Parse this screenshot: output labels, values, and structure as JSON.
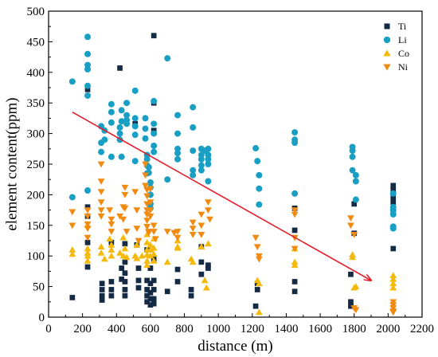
{
  "chart_data": {
    "type": "scatter",
    "xlabel": "distance (m)",
    "ylabel": "element content(ppm)",
    "xlim": [
      0,
      2200
    ],
    "ylim": [
      0,
      500
    ],
    "xticks": [
      0,
      200,
      400,
      600,
      800,
      1000,
      1200,
      1400,
      1600,
      1800,
      2000,
      2200
    ],
    "yticks": [
      0,
      50,
      100,
      150,
      200,
      250,
      300,
      350,
      400,
      450,
      500
    ],
    "legend_position": "top-right",
    "grid": false,
    "series": [
      {
        "name": "Ti",
        "marker": "square",
        "color": "#152a44",
        "points": [
          [
            140,
            32
          ],
          [
            230,
            372
          ],
          [
            230,
            180
          ],
          [
            230,
            165
          ],
          [
            230,
            122
          ],
          [
            230,
            82
          ],
          [
            315,
            55
          ],
          [
            315,
            45
          ],
          [
            315,
            35
          ],
          [
            315,
            28
          ],
          [
            370,
            122
          ],
          [
            370,
            58
          ],
          [
            370,
            45
          ],
          [
            370,
            35
          ],
          [
            420,
            407
          ],
          [
            430,
            80
          ],
          [
            430,
            62
          ],
          [
            450,
            120
          ],
          [
            450,
            90
          ],
          [
            450,
            72
          ],
          [
            450,
            58
          ],
          [
            450,
            45
          ],
          [
            450,
            35
          ],
          [
            510,
            316
          ],
          [
            520,
            118
          ],
          [
            530,
            80
          ],
          [
            530,
            60
          ],
          [
            530,
            48
          ],
          [
            580,
            110
          ],
          [
            580,
            60
          ],
          [
            580,
            45
          ],
          [
            580,
            35
          ],
          [
            580,
            25
          ],
          [
            600,
            80
          ],
          [
            600,
            55
          ],
          [
            600,
            40
          ],
          [
            600,
            30
          ],
          [
            600,
            20
          ],
          [
            620,
            460
          ],
          [
            620,
            350
          ],
          [
            620,
            305
          ],
          [
            620,
            95
          ],
          [
            620,
            60
          ],
          [
            620,
            45
          ],
          [
            620,
            30
          ],
          [
            620,
            22
          ],
          [
            700,
            42
          ],
          [
            760,
            58
          ],
          [
            760,
            78
          ],
          [
            840,
            45
          ],
          [
            840,
            35
          ],
          [
            900,
            115
          ],
          [
            900,
            90
          ],
          [
            900,
            70
          ],
          [
            940,
            85
          ],
          [
            940,
            80
          ],
          [
            1220,
            18
          ],
          [
            1230,
            55
          ],
          [
            1230,
            45
          ],
          [
            1450,
            178
          ],
          [
            1450,
            142
          ],
          [
            1450,
            58
          ],
          [
            1450,
            42
          ],
          [
            1780,
            70
          ],
          [
            1780,
            25
          ],
          [
            1780,
            18
          ],
          [
            1800,
            185
          ],
          [
            1800,
            137
          ],
          [
            2030,
            215
          ],
          [
            2030,
            208
          ],
          [
            2030,
            195
          ],
          [
            2030,
            188
          ],
          [
            2030,
            170
          ],
          [
            2030,
            112
          ]
        ]
      },
      {
        "name": "Li",
        "marker": "circle",
        "color": "#1a9fc4",
        "points": [
          [
            140,
            196
          ],
          [
            140,
            385
          ],
          [
            230,
            458
          ],
          [
            230,
            430
          ],
          [
            230,
            412
          ],
          [
            230,
            405
          ],
          [
            230,
            378
          ],
          [
            230,
            362
          ],
          [
            230,
            207
          ],
          [
            310,
            312
          ],
          [
            310,
            285
          ],
          [
            310,
            270
          ],
          [
            330,
            305
          ],
          [
            330,
            290
          ],
          [
            370,
            348
          ],
          [
            370,
            335
          ],
          [
            370,
            318
          ],
          [
            370,
            262
          ],
          [
            420,
            310
          ],
          [
            420,
            300
          ],
          [
            420,
            290
          ],
          [
            430,
            338
          ],
          [
            430,
            320
          ],
          [
            430,
            262
          ],
          [
            460,
            350
          ],
          [
            460,
            330
          ],
          [
            460,
            322
          ],
          [
            460,
            316
          ],
          [
            510,
            370
          ],
          [
            510,
            325
          ],
          [
            510,
            312
          ],
          [
            510,
            298
          ],
          [
            510,
            255
          ],
          [
            570,
            325
          ],
          [
            570,
            308
          ],
          [
            570,
            292
          ],
          [
            580,
            265
          ],
          [
            580,
            258
          ],
          [
            580,
            248
          ],
          [
            580,
            235
          ],
          [
            590,
            245
          ],
          [
            590,
            236
          ],
          [
            600,
            220
          ],
          [
            600,
            212
          ],
          [
            600,
            200
          ],
          [
            600,
            185
          ],
          [
            600,
            178
          ],
          [
            620,
            353
          ],
          [
            620,
            316
          ],
          [
            620,
            300
          ],
          [
            620,
            280
          ],
          [
            620,
            270
          ],
          [
            700,
            423
          ],
          [
            700,
            225
          ],
          [
            760,
            330
          ],
          [
            760,
            300
          ],
          [
            760,
            275
          ],
          [
            760,
            268
          ],
          [
            760,
            258
          ],
          [
            850,
            343
          ],
          [
            850,
            310
          ],
          [
            850,
            272
          ],
          [
            850,
            240
          ],
          [
            850,
            232
          ],
          [
            900,
            275
          ],
          [
            900,
            265
          ],
          [
            900,
            258
          ],
          [
            900,
            248
          ],
          [
            900,
            240
          ],
          [
            920,
            272
          ],
          [
            940,
            275
          ],
          [
            940,
            265
          ],
          [
            940,
            258
          ],
          [
            940,
            250
          ],
          [
            940,
            222
          ],
          [
            1220,
            276
          ],
          [
            1230,
            255
          ],
          [
            1240,
            232
          ],
          [
            1240,
            210
          ],
          [
            1240,
            184
          ],
          [
            1450,
            302
          ],
          [
            1450,
            290
          ],
          [
            1450,
            285
          ],
          [
            1450,
            202
          ],
          [
            1790,
            278
          ],
          [
            1790,
            272
          ],
          [
            1790,
            262
          ],
          [
            1790,
            240
          ],
          [
            1810,
            232
          ],
          [
            1810,
            222
          ],
          [
            1810,
            192
          ],
          [
            2030,
            202
          ],
          [
            2030,
            180
          ],
          [
            2030,
            175
          ],
          [
            2030,
            168
          ],
          [
            2030,
            148
          ],
          [
            2030,
            145
          ]
        ]
      },
      {
        "name": "Co",
        "marker": "triangle-up",
        "color": "#f5b90a",
        "points": [
          [
            140,
            110
          ],
          [
            140,
            103
          ],
          [
            230,
            150
          ],
          [
            230,
            112
          ],
          [
            230,
            105
          ],
          [
            230,
            100
          ],
          [
            230,
            92
          ],
          [
            310,
            115
          ],
          [
            310,
            105
          ],
          [
            330,
            95
          ],
          [
            360,
            128
          ],
          [
            370,
            118
          ],
          [
            370,
            110
          ],
          [
            370,
            100
          ],
          [
            420,
            105
          ],
          [
            440,
            130
          ],
          [
            440,
            100
          ],
          [
            450,
            112
          ],
          [
            460,
            98
          ],
          [
            510,
            100
          ],
          [
            520,
            118
          ],
          [
            520,
            96
          ],
          [
            550,
            100
          ],
          [
            580,
            135
          ],
          [
            580,
            122
          ],
          [
            580,
            110
          ],
          [
            580,
            102
          ],
          [
            580,
            92
          ],
          [
            580,
            85
          ],
          [
            600,
            118
          ],
          [
            600,
            110
          ],
          [
            600,
            100
          ],
          [
            620,
            128
          ],
          [
            620,
            113
          ],
          [
            620,
            103
          ],
          [
            620,
            92
          ],
          [
            700,
            90
          ],
          [
            760,
            125
          ],
          [
            760,
            115
          ],
          [
            760,
            113
          ],
          [
            840,
            95
          ],
          [
            850,
            90
          ],
          [
            900,
            115
          ],
          [
            920,
            60
          ],
          [
            930,
            48
          ],
          [
            940,
            120
          ],
          [
            1230,
            60
          ],
          [
            1240,
            55
          ],
          [
            1240,
            8
          ],
          [
            1450,
            112
          ],
          [
            1450,
            90
          ],
          [
            1450,
            85
          ],
          [
            1790,
            102
          ],
          [
            1790,
            98
          ],
          [
            1810,
            50
          ],
          [
            1800,
            48
          ],
          [
            2030,
            68
          ],
          [
            2030,
            62
          ],
          [
            2030,
            55
          ],
          [
            2030,
            48
          ]
        ]
      },
      {
        "name": "Ni",
        "marker": "triangle-down",
        "color": "#f08a10",
        "points": [
          [
            140,
            172
          ],
          [
            140,
            150
          ],
          [
            230,
            175
          ],
          [
            230,
            165
          ],
          [
            230,
            152
          ],
          [
            230,
            145
          ],
          [
            230,
            130
          ],
          [
            310,
            250
          ],
          [
            310,
            222
          ],
          [
            310,
            205
          ],
          [
            310,
            188
          ],
          [
            310,
            175
          ],
          [
            310,
            165
          ],
          [
            360,
            175
          ],
          [
            370,
            160
          ],
          [
            370,
            152
          ],
          [
            370,
            140
          ],
          [
            420,
            165
          ],
          [
            440,
            180
          ],
          [
            440,
            160
          ],
          [
            450,
            212
          ],
          [
            450,
            200
          ],
          [
            450,
            178
          ],
          [
            460,
            140
          ],
          [
            510,
            205
          ],
          [
            520,
            175
          ],
          [
            520,
            145
          ],
          [
            530,
            125
          ],
          [
            570,
            250
          ],
          [
            570,
            232
          ],
          [
            570,
            215
          ],
          [
            580,
            208
          ],
          [
            580,
            198
          ],
          [
            580,
            185
          ],
          [
            580,
            175
          ],
          [
            580,
            168
          ],
          [
            580,
            158
          ],
          [
            580,
            148
          ],
          [
            590,
            140
          ],
          [
            590,
            138
          ],
          [
            600,
            210
          ],
          [
            600,
            188
          ],
          [
            600,
            175
          ],
          [
            600,
            165
          ],
          [
            620,
            150
          ],
          [
            620,
            140
          ],
          [
            630,
            128
          ],
          [
            700,
            140
          ],
          [
            740,
            138
          ],
          [
            760,
            140
          ],
          [
            760,
            130
          ],
          [
            850,
            155
          ],
          [
            850,
            145
          ],
          [
            850,
            135
          ],
          [
            900,
            168
          ],
          [
            900,
            150
          ],
          [
            900,
            135
          ],
          [
            940,
            188
          ],
          [
            940,
            175
          ],
          [
            950,
            160
          ],
          [
            1220,
            130
          ],
          [
            1230,
            115
          ],
          [
            1240,
            100
          ],
          [
            1240,
            95
          ],
          [
            1450,
            175
          ],
          [
            1450,
            168
          ],
          [
            1450,
            130
          ],
          [
            1450,
            112
          ],
          [
            1780,
            162
          ],
          [
            1780,
            150
          ],
          [
            1800,
            135
          ],
          [
            1800,
            15
          ],
          [
            1810,
            12
          ],
          [
            2030,
            25
          ],
          [
            2030,
            20
          ],
          [
            2030,
            15
          ],
          [
            2030,
            10
          ],
          [
            2030,
            8
          ]
        ]
      }
    ],
    "annotations": [
      {
        "type": "arrow",
        "color": "#e11d2a",
        "from": [
          140,
          335
        ],
        "to": [
          1900,
          60
        ]
      }
    ]
  }
}
